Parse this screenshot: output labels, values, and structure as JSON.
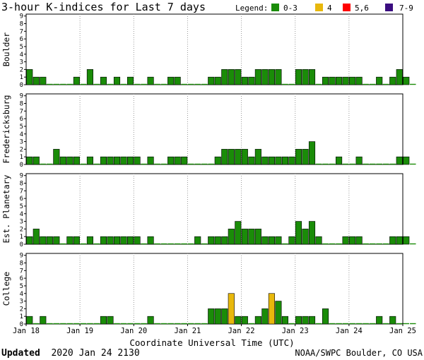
{
  "header": {
    "title": "3-hour K-indices for Last 7 days",
    "legend_title": "Legend:",
    "legend": [
      {
        "label": "0-3",
        "color": "#1a8c08"
      },
      {
        "label": "4",
        "color": "#e8b80c"
      },
      {
        "label": "5,6",
        "color": "#ff0000"
      },
      {
        "label": "7-9",
        "color": "#3a0d80"
      }
    ]
  },
  "footer": {
    "updated_label": "Updated",
    "updated_value": "2020 Jan 24 2130",
    "credit": "NOAA/SWPC Boulder, CO USA"
  },
  "chart_data": {
    "type": "bar",
    "title": "3-hour K-indices for Last 7 days",
    "xlabel": "Coordinate Universal Time (UTC)",
    "x_ticks": [
      "Jan 18",
      "Jan 19",
      "Jan 20",
      "Jan 21",
      "Jan 22",
      "Jan 23",
      "Jan 24",
      "Jan 25"
    ],
    "y_ticks": [
      0,
      1,
      2,
      3,
      4,
      5,
      6,
      7,
      8,
      9
    ],
    "ylim": [
      0,
      9
    ],
    "interval_hours": 3,
    "series": [
      {
        "name": "Boulder",
        "values": [
          2,
          1,
          1,
          0,
          0,
          0,
          0,
          1,
          0,
          2,
          0,
          1,
          0,
          1,
          0,
          1,
          0,
          0,
          1,
          0,
          0,
          1,
          1,
          0,
          0,
          0,
          0,
          1,
          1,
          2,
          2,
          2,
          1,
          1,
          2,
          2,
          2,
          2,
          0,
          0,
          2,
          2,
          2,
          0,
          1,
          1,
          1,
          1,
          1,
          1,
          0,
          0,
          1,
          0,
          1,
          2,
          1,
          0
        ]
      },
      {
        "name": "Fredericksburg",
        "values": [
          1,
          1,
          0,
          0,
          2,
          1,
          1,
          1,
          0,
          1,
          0,
          1,
          1,
          1,
          1,
          1,
          1,
          0,
          1,
          0,
          0,
          1,
          1,
          1,
          0,
          0,
          0,
          0,
          1,
          2,
          2,
          2,
          2,
          1,
          2,
          1,
          1,
          1,
          1,
          1,
          2,
          2,
          3,
          0,
          0,
          0,
          1,
          0,
          0,
          1,
          0,
          0,
          0,
          0,
          0,
          1,
          1,
          0
        ]
      },
      {
        "name": "Est. Planetary",
        "values": [
          1,
          2,
          1,
          1,
          1,
          0,
          1,
          1,
          0,
          1,
          0,
          1,
          1,
          1,
          1,
          1,
          1,
          0,
          1,
          0,
          0,
          0,
          0,
          0,
          0,
          1,
          0,
          1,
          1,
          1,
          2,
          3,
          2,
          2,
          2,
          1,
          1,
          1,
          0,
          1,
          3,
          2,
          3,
          1,
          0,
          0,
          0,
          1,
          1,
          1,
          0,
          0,
          0,
          0,
          1,
          1,
          1,
          0
        ]
      },
      {
        "name": "College",
        "values": [
          1,
          0,
          1,
          0,
          0,
          0,
          0,
          0,
          0,
          0,
          0,
          1,
          1,
          0,
          0,
          0,
          0,
          0,
          1,
          0,
          0,
          0,
          0,
          0,
          0,
          0,
          0,
          2,
          2,
          2,
          4,
          1,
          1,
          0,
          1,
          2,
          4,
          3,
          1,
          0,
          1,
          1,
          1,
          0,
          2,
          0,
          0,
          0,
          0,
          0,
          0,
          0,
          1,
          0,
          1,
          0,
          0,
          0
        ]
      }
    ]
  }
}
